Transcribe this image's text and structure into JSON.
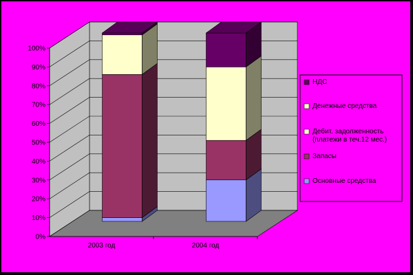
{
  "chart_data": {
    "type": "bar",
    "stacked": true,
    "percent": true,
    "three_d": true,
    "categories": [
      "2003 год",
      "2004 год"
    ],
    "series": [
      {
        "name": "Основные средства",
        "values": [
          2,
          22
        ],
        "color": "#9999FF"
      },
      {
        "name": "Запасы",
        "values": [
          76,
          21
        ],
        "color": "#993366"
      },
      {
        "name": "Дебит. задолженность (платежи в теч.12 мес.)",
        "values": [
          0,
          0
        ],
        "color": "#FFFFCC"
      },
      {
        "name": "Денежные средства",
        "values": [
          21,
          39
        ],
        "color": "#FFFFCC"
      },
      {
        "name": "НДС",
        "values": [
          1,
          18
        ],
        "color": "#660066"
      }
    ],
    "legend_order": [
      4,
      3,
      2,
      1,
      0
    ],
    "yticks": [
      "0%",
      "10%",
      "20%",
      "30%",
      "40%",
      "50%",
      "60%",
      "70%",
      "80%",
      "90%",
      "100%"
    ],
    "ylim": [
      0,
      100
    ],
    "grid": true,
    "legend_position": "right"
  },
  "colors": {
    "page_background": "#FF00FF",
    "frame": "#000000",
    "back_wall": "#C0C0C0",
    "floor": "#808080"
  }
}
